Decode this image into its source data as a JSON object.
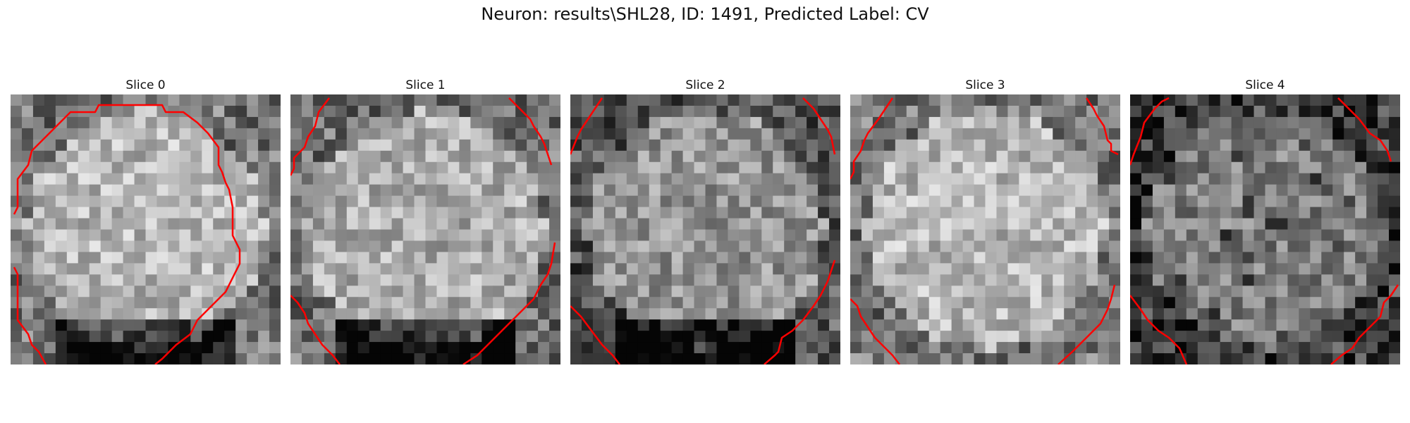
{
  "figure": {
    "title": "Neuron: results\\SHL28, ID: 1491, Predicted Label: CV",
    "contour_color": "#ff0000"
  },
  "slices": [
    {
      "title": "Slice 0",
      "brightness": 0.5,
      "dark_bottom": true
    },
    {
      "title": "Slice 1",
      "brightness": 0.46,
      "dark_bottom": true
    },
    {
      "title": "Slice 2",
      "brightness": 0.36,
      "dark_bottom": true
    },
    {
      "title": "Slice 3",
      "brightness": 0.5,
      "dark_bottom": false
    },
    {
      "title": "Slice 4",
      "brightness": 0.28,
      "dark_bottom": false
    }
  ]
}
